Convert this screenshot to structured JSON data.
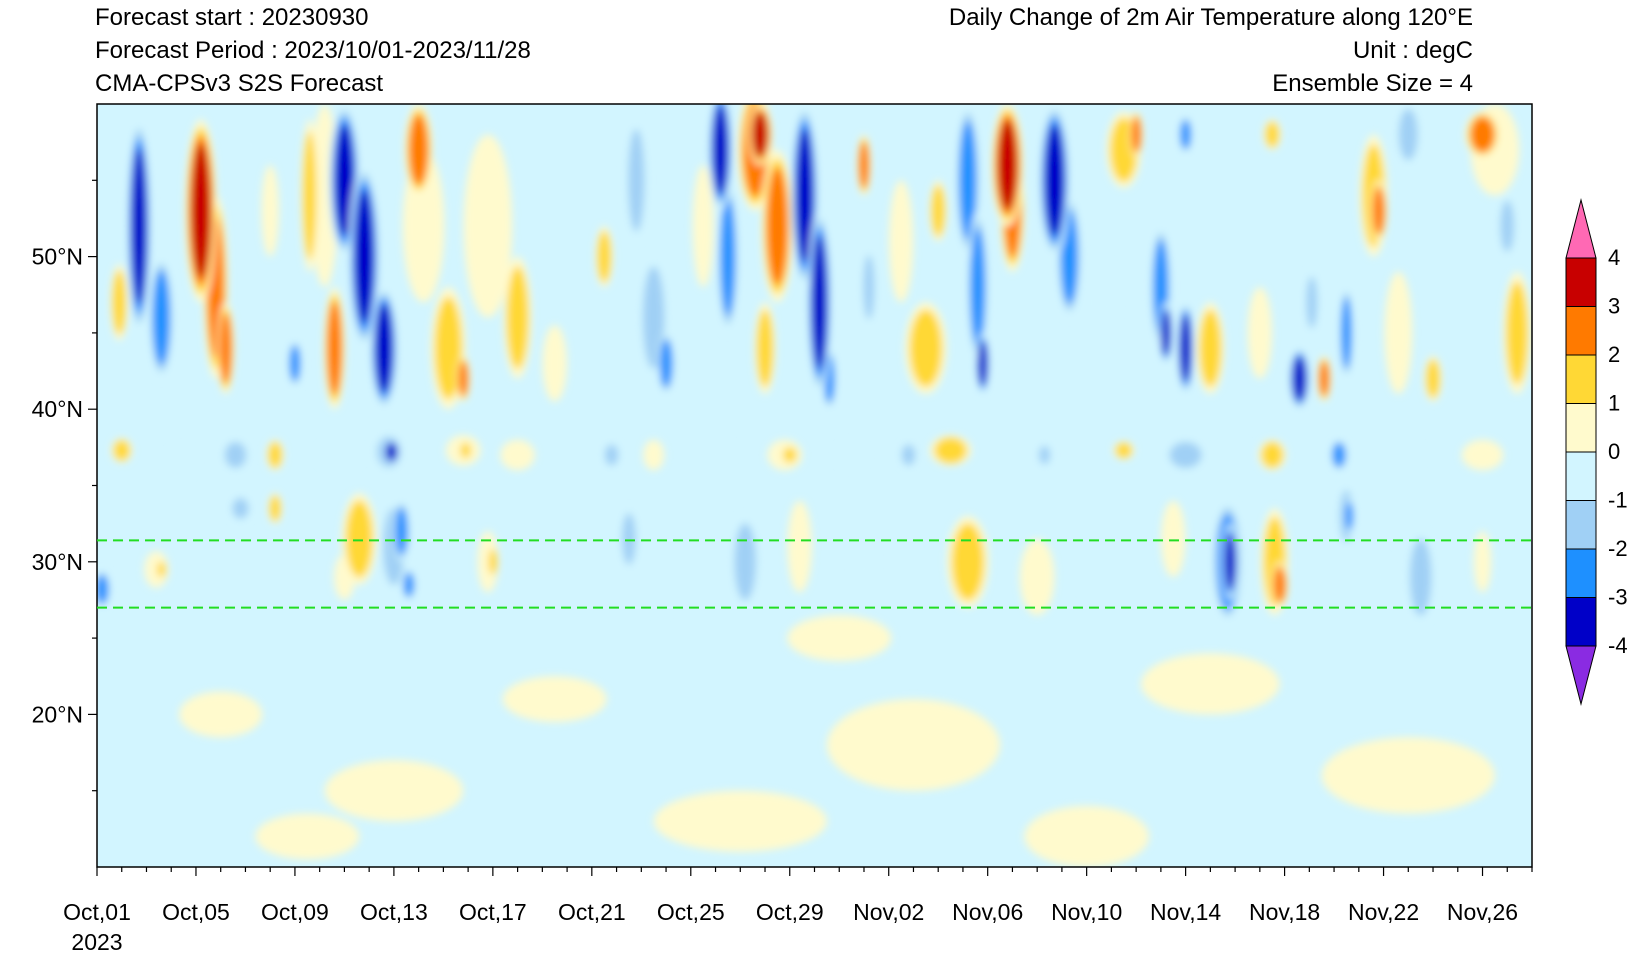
{
  "header": {
    "forecast_start": "Forecast start : 20230930",
    "forecast_period": "Forecast Period : 2023/10/01-2023/11/28",
    "model": "CMA-CPSv3 S2S Forecast",
    "title": "Daily Change of 2m Air Temperature along 120°E",
    "unit": "Unit : degC",
    "ensemble": "Ensemble Size = 4"
  },
  "chart_data": {
    "type": "heatmap",
    "title": "Daily Change of 2m Air Temperature along 120°E",
    "unit": "degC",
    "x_axis": {
      "type": "date",
      "range": [
        "2023-10-01",
        "2023-11-28"
      ],
      "tick_labels": [
        "Oct,01",
        "Oct,05",
        "Oct,09",
        "Oct,13",
        "Oct,17",
        "Oct,21",
        "Oct,25",
        "Oct,29",
        "Nov,02",
        "Nov,06",
        "Nov,10",
        "Nov,14",
        "Nov,18",
        "Nov,22",
        "Nov,26"
      ],
      "tick_dates": [
        "2023-10-01",
        "2023-10-05",
        "2023-10-09",
        "2023-10-13",
        "2023-10-17",
        "2023-10-21",
        "2023-10-25",
        "2023-10-29",
        "2023-11-02",
        "2023-11-06",
        "2023-11-10",
        "2023-11-14",
        "2023-11-18",
        "2023-11-22",
        "2023-11-26"
      ],
      "year_label": "2023"
    },
    "y_axis": {
      "range": [
        10,
        60
      ],
      "tick_values": [
        20,
        30,
        40,
        50
      ],
      "tick_labels": [
        "20°N",
        "30°N",
        "40°N",
        "50°N"
      ]
    },
    "reference_lines": [
      31.4,
      27.0
    ],
    "reference_line_color": "#22dd22",
    "colorbar": {
      "levels": [
        -4,
        -3,
        -2,
        -1,
        0,
        1,
        2,
        3,
        4
      ],
      "labels": [
        "4",
        "3",
        "2",
        "1",
        "0",
        "-1",
        "-2",
        "-3",
        "-4"
      ],
      "colors": [
        "#8a2be2",
        "#0000c8",
        "#1e90ff",
        "#a0d0f5",
        "#d2f5ff",
        "#fffacd",
        "#ffd835",
        "#ff7a00",
        "#c80000",
        "#ff69b4"
      ]
    },
    "blobs": [
      {
        "d": 1.7,
        "lat": 52,
        "w": 0.35,
        "h": 7,
        "v": -4
      },
      {
        "d": 2.6,
        "lat": 46,
        "w": 0.35,
        "h": 4,
        "v": -3
      },
      {
        "d": 4.2,
        "lat": 53,
        "w": 0.45,
        "h": 6,
        "v": 4
      },
      {
        "d": 4.8,
        "lat": 48,
        "w": 0.35,
        "h": 6,
        "v": 3
      },
      {
        "d": 5.2,
        "lat": 44,
        "w": 0.25,
        "h": 3,
        "v": 3
      },
      {
        "d": 0.9,
        "lat": 47,
        "w": 0.25,
        "h": 2.5,
        "v": 2
      },
      {
        "d": 7.0,
        "lat": 53,
        "w": 0.25,
        "h": 3,
        "v": 1
      },
      {
        "d": 8.0,
        "lat": 43,
        "w": 0.2,
        "h": 1.5,
        "v": -3
      },
      {
        "d": 8.6,
        "lat": 54,
        "w": 0.25,
        "h": 5,
        "v": 2
      },
      {
        "d": 9.6,
        "lat": 44,
        "w": 0.3,
        "h": 4,
        "v": 3
      },
      {
        "d": 9.2,
        "lat": 54,
        "w": 0.4,
        "h": 6,
        "v": 1
      },
      {
        "d": 10.0,
        "lat": 55,
        "w": 0.45,
        "h": 5,
        "v": -4
      },
      {
        "d": 10.8,
        "lat": 50,
        "w": 0.45,
        "h": 6,
        "v": -4
      },
      {
        "d": 11.6,
        "lat": 44,
        "w": 0.4,
        "h": 4,
        "v": -4
      },
      {
        "d": 13.0,
        "lat": 57,
        "w": 0.4,
        "h": 3,
        "v": 3
      },
      {
        "d": 13.2,
        "lat": 52,
        "w": 0.6,
        "h": 5,
        "v": 1
      },
      {
        "d": 14.2,
        "lat": 44,
        "w": 0.5,
        "h": 4,
        "v": 2
      },
      {
        "d": 14.8,
        "lat": 42,
        "w": 0.2,
        "h": 1.5,
        "v": 3
      },
      {
        "d": 15.8,
        "lat": 52,
        "w": 0.7,
        "h": 6,
        "v": 1
      },
      {
        "d": 17.0,
        "lat": 46,
        "w": 0.4,
        "h": 4,
        "v": 2
      },
      {
        "d": 18.5,
        "lat": 43,
        "w": 0.35,
        "h": 2.5,
        "v": 1
      },
      {
        "d": 20.5,
        "lat": 50,
        "w": 0.25,
        "h": 2,
        "v": 2
      },
      {
        "d": 21.8,
        "lat": 55,
        "w": 0.3,
        "h": 4,
        "v": -2
      },
      {
        "d": 22.5,
        "lat": 46,
        "w": 0.4,
        "h": 4,
        "v": -2
      },
      {
        "d": 23.0,
        "lat": 43,
        "w": 0.25,
        "h": 2,
        "v": -3
      },
      {
        "d": 24.5,
        "lat": 52,
        "w": 0.3,
        "h": 4,
        "v": 1
      },
      {
        "d": 25.2,
        "lat": 57,
        "w": 0.35,
        "h": 4,
        "v": -4
      },
      {
        "d": 25.5,
        "lat": 50,
        "w": 0.3,
        "h": 5,
        "v": -3
      },
      {
        "d": 26.6,
        "lat": 57,
        "w": 0.5,
        "h": 4,
        "v": 3
      },
      {
        "d": 26.8,
        "lat": 58,
        "w": 0.35,
        "h": 2,
        "v": 4
      },
      {
        "d": 27.5,
        "lat": 52,
        "w": 0.45,
        "h": 5,
        "v": 3
      },
      {
        "d": 27.0,
        "lat": 44,
        "w": 0.3,
        "h": 3,
        "v": 2
      },
      {
        "d": 28.6,
        "lat": 54,
        "w": 0.4,
        "h": 6,
        "v": -4
      },
      {
        "d": 29.2,
        "lat": 47,
        "w": 0.35,
        "h": 6,
        "v": -4
      },
      {
        "d": 29.6,
        "lat": 42,
        "w": 0.2,
        "h": 2,
        "v": -3
      },
      {
        "d": 31.0,
        "lat": 56,
        "w": 0.2,
        "h": 2,
        "v": 3
      },
      {
        "d": 31.2,
        "lat": 48,
        "w": 0.2,
        "h": 2.5,
        "v": -2
      },
      {
        "d": 32.5,
        "lat": 51,
        "w": 0.35,
        "h": 4,
        "v": 1
      },
      {
        "d": 33.5,
        "lat": 44,
        "w": 0.6,
        "h": 3,
        "v": 2
      },
      {
        "d": 34.0,
        "lat": 53,
        "w": 0.25,
        "h": 2,
        "v": 2
      },
      {
        "d": 35.2,
        "lat": 55,
        "w": 0.35,
        "h": 5,
        "v": -3
      },
      {
        "d": 35.6,
        "lat": 48,
        "w": 0.3,
        "h": 5,
        "v": -3
      },
      {
        "d": 35.8,
        "lat": 43,
        "w": 0.2,
        "h": 2,
        "v": -4
      },
      {
        "d": 36.8,
        "lat": 56,
        "w": 0.45,
        "h": 4,
        "v": 4
      },
      {
        "d": 37.0,
        "lat": 53,
        "w": 0.35,
        "h": 4,
        "v": 3
      },
      {
        "d": 38.7,
        "lat": 55,
        "w": 0.45,
        "h": 5,
        "v": -4
      },
      {
        "d": 39.3,
        "lat": 50,
        "w": 0.35,
        "h": 4,
        "v": -3
      },
      {
        "d": 40.5,
        "lat": 47,
        "w": 0.5,
        "h": 3,
        "v": -1
      },
      {
        "d": 41.5,
        "lat": 57,
        "w": 0.5,
        "h": 2.5,
        "v": 2
      },
      {
        "d": 42.0,
        "lat": 58,
        "w": 0.2,
        "h": 1.5,
        "v": 3
      },
      {
        "d": 43.0,
        "lat": 48,
        "w": 0.3,
        "h": 4,
        "v": -3
      },
      {
        "d": 43.2,
        "lat": 45,
        "w": 0.2,
        "h": 2,
        "v": -4
      },
      {
        "d": 44.0,
        "lat": 44,
        "w": 0.25,
        "h": 3,
        "v": -4
      },
      {
        "d": 44.0,
        "lat": 58,
        "w": 0.2,
        "h": 1.2,
        "v": -3
      },
      {
        "d": 45.0,
        "lat": 44,
        "w": 0.4,
        "h": 3,
        "v": 2
      },
      {
        "d": 47.0,
        "lat": 45,
        "w": 0.35,
        "h": 3,
        "v": 1
      },
      {
        "d": 47.5,
        "lat": 58,
        "w": 0.25,
        "h": 1,
        "v": 2
      },
      {
        "d": 48.6,
        "lat": 42,
        "w": 0.3,
        "h": 2,
        "v": -4
      },
      {
        "d": 49.1,
        "lat": 47,
        "w": 0.2,
        "h": 2,
        "v": -2
      },
      {
        "d": 49.6,
        "lat": 42,
        "w": 0.2,
        "h": 1.5,
        "v": 3
      },
      {
        "d": 50.5,
        "lat": 45,
        "w": 0.2,
        "h": 3,
        "v": -3
      },
      {
        "d": 51.6,
        "lat": 54,
        "w": 0.4,
        "h": 4,
        "v": 2
      },
      {
        "d": 51.8,
        "lat": 53,
        "w": 0.25,
        "h": 2,
        "v": 3
      },
      {
        "d": 52.6,
        "lat": 45,
        "w": 0.4,
        "h": 4,
        "v": 1
      },
      {
        "d": 53.0,
        "lat": 58,
        "w": 0.35,
        "h": 2,
        "v": -2
      },
      {
        "d": 54.0,
        "lat": 42,
        "w": 0.25,
        "h": 1.5,
        "v": 2
      },
      {
        "d": 56.0,
        "lat": 58,
        "w": 0.5,
        "h": 1.5,
        "v": 3
      },
      {
        "d": 56.5,
        "lat": 57,
        "w": 0.7,
        "h": 3,
        "v": 1
      },
      {
        "d": 57.0,
        "lat": 52,
        "w": 0.25,
        "h": 2,
        "v": -2
      },
      {
        "d": 57.4,
        "lat": 45,
        "w": 0.4,
        "h": 4,
        "v": 2
      },
      {
        "d": 1.0,
        "lat": 37.3,
        "w": 0.3,
        "h": 0.8,
        "v": 2
      },
      {
        "d": 3.4,
        "lat": 36.5,
        "w": 0.4,
        "h": 1,
        "v": -1
      },
      {
        "d": 5.6,
        "lat": 37,
        "w": 0.4,
        "h": 1,
        "v": -2
      },
      {
        "d": 7.2,
        "lat": 37,
        "w": 0.25,
        "h": 1,
        "v": 2
      },
      {
        "d": 9.8,
        "lat": 37,
        "w": 0.6,
        "h": 1,
        "v": -1
      },
      {
        "d": 11.8,
        "lat": 37.2,
        "w": 0.45,
        "h": 1.2,
        "v": -2
      },
      {
        "d": 11.9,
        "lat": 37.2,
        "w": 0.25,
        "h": 0.8,
        "v": -4
      },
      {
        "d": 14.8,
        "lat": 37.3,
        "w": 0.5,
        "h": 1,
        "v": 1
      },
      {
        "d": 14.9,
        "lat": 37.3,
        "w": 0.2,
        "h": 0.6,
        "v": 2
      },
      {
        "d": 17.0,
        "lat": 37,
        "w": 0.5,
        "h": 1,
        "v": 1
      },
      {
        "d": 20.8,
        "lat": 37,
        "w": 0.25,
        "h": 0.8,
        "v": -2
      },
      {
        "d": 22.5,
        "lat": 37,
        "w": 0.3,
        "h": 1,
        "v": 1
      },
      {
        "d": 25.0,
        "lat": 37.2,
        "w": 0.5,
        "h": 0.8,
        "v": -1
      },
      {
        "d": 27.8,
        "lat": 37,
        "w": 0.5,
        "h": 1,
        "v": 1
      },
      {
        "d": 28.0,
        "lat": 37,
        "w": 0.25,
        "h": 0.6,
        "v": 2
      },
      {
        "d": 30.5,
        "lat": 37,
        "w": 0.4,
        "h": 0.8,
        "v": -1
      },
      {
        "d": 32.8,
        "lat": 37,
        "w": 0.25,
        "h": 0.8,
        "v": -2
      },
      {
        "d": 34.5,
        "lat": 37.3,
        "w": 0.6,
        "h": 1,
        "v": 2
      },
      {
        "d": 37.0,
        "lat": 37,
        "w": 0.5,
        "h": 1,
        "v": -1
      },
      {
        "d": 38.3,
        "lat": 37,
        "w": 0.2,
        "h": 0.7,
        "v": -2
      },
      {
        "d": 41.5,
        "lat": 37.3,
        "w": 0.3,
        "h": 0.6,
        "v": 2
      },
      {
        "d": 44.0,
        "lat": 37,
        "w": 0.6,
        "h": 1,
        "v": -2
      },
      {
        "d": 46.0,
        "lat": 37,
        "w": 0.4,
        "h": 1,
        "v": -1
      },
      {
        "d": 47.5,
        "lat": 37,
        "w": 0.4,
        "h": 1,
        "v": 2
      },
      {
        "d": 50.2,
        "lat": 37,
        "w": 0.25,
        "h": 1,
        "v": -3
      },
      {
        "d": 53.0,
        "lat": 37,
        "w": 0.4,
        "h": 0.8,
        "v": -1
      },
      {
        "d": 56.0,
        "lat": 37,
        "w": 0.6,
        "h": 1,
        "v": 1
      },
      {
        "d": 0.2,
        "lat": 28.2,
        "w": 0.25,
        "h": 1.2,
        "v": -3
      },
      {
        "d": 2.4,
        "lat": 29.5,
        "w": 0.35,
        "h": 1.2,
        "v": 1
      },
      {
        "d": 2.6,
        "lat": 29.5,
        "w": 0.15,
        "h": 0.6,
        "v": 2
      },
      {
        "d": 5.8,
        "lat": 33.5,
        "w": 0.3,
        "h": 0.8,
        "v": -2
      },
      {
        "d": 7.2,
        "lat": 33.5,
        "w": 0.2,
        "h": 1,
        "v": 2
      },
      {
        "d": 10.0,
        "lat": 29,
        "w": 0.3,
        "h": 1.5,
        "v": 1
      },
      {
        "d": 10.6,
        "lat": 31.5,
        "w": 0.5,
        "h": 3,
        "v": 2
      },
      {
        "d": 12.0,
        "lat": 31,
        "w": 0.4,
        "h": 3,
        "v": -2
      },
      {
        "d": 12.3,
        "lat": 32,
        "w": 0.25,
        "h": 2,
        "v": -3
      },
      {
        "d": 12.6,
        "lat": 28.5,
        "w": 0.2,
        "h": 1,
        "v": -3
      },
      {
        "d": 15.8,
        "lat": 30,
        "w": 0.3,
        "h": 2,
        "v": 1
      },
      {
        "d": 16.0,
        "lat": 30,
        "w": 0.15,
        "h": 1,
        "v": 2
      },
      {
        "d": 21.5,
        "lat": 31.5,
        "w": 0.25,
        "h": 2,
        "v": -2
      },
      {
        "d": 22.8,
        "lat": 29,
        "w": 0.35,
        "h": 2.5,
        "v": -1
      },
      {
        "d": 26.2,
        "lat": 30,
        "w": 0.4,
        "h": 3,
        "v": -2
      },
      {
        "d": 28.4,
        "lat": 31,
        "w": 0.35,
        "h": 3,
        "v": 1
      },
      {
        "d": 31.0,
        "lat": 30,
        "w": 0.3,
        "h": 3,
        "v": -1
      },
      {
        "d": 35.2,
        "lat": 30,
        "w": 0.6,
        "h": 3,
        "v": 2
      },
      {
        "d": 38.0,
        "lat": 29,
        "w": 0.5,
        "h": 2.5,
        "v": 1
      },
      {
        "d": 40.0,
        "lat": 30,
        "w": 0.3,
        "h": 2,
        "v": -1
      },
      {
        "d": 43.5,
        "lat": 31.5,
        "w": 0.35,
        "h": 2.5,
        "v": 1
      },
      {
        "d": 45.7,
        "lat": 30,
        "w": 0.45,
        "h": 4,
        "v": -3
      },
      {
        "d": 45.8,
        "lat": 30,
        "w": 0.25,
        "h": 2.5,
        "v": -4
      },
      {
        "d": 47.6,
        "lat": 30,
        "w": 0.4,
        "h": 3.5,
        "v": 2
      },
      {
        "d": 47.8,
        "lat": 28.5,
        "w": 0.25,
        "h": 1.5,
        "v": 3
      },
      {
        "d": 50.5,
        "lat": 33,
        "w": 0.25,
        "h": 2,
        "v": -2
      },
      {
        "d": 50.6,
        "lat": 33,
        "w": 0.12,
        "h": 1.2,
        "v": -3
      },
      {
        "d": 53.5,
        "lat": 29,
        "w": 0.4,
        "h": 3,
        "v": -2
      },
      {
        "d": 51.7,
        "lat": 29,
        "w": 0.4,
        "h": 1.5,
        "v": -1
      },
      {
        "d": 56.0,
        "lat": 30,
        "w": 0.25,
        "h": 2,
        "v": 1
      },
      {
        "d": 5.0,
        "lat": 20,
        "w": 1.2,
        "h": 1.5,
        "v": 1
      },
      {
        "d": 12.0,
        "lat": 15,
        "w": 2.0,
        "h": 2,
        "v": 1
      },
      {
        "d": 18.5,
        "lat": 21,
        "w": 1.5,
        "h": 1.5,
        "v": 1
      },
      {
        "d": 26.0,
        "lat": 13,
        "w": 2.5,
        "h": 2,
        "v": 1
      },
      {
        "d": 33.0,
        "lat": 18,
        "w": 2.5,
        "h": 3,
        "v": 1
      },
      {
        "d": 40.0,
        "lat": 12,
        "w": 1.8,
        "h": 2,
        "v": 1
      },
      {
        "d": 45.0,
        "lat": 22,
        "w": 2.0,
        "h": 2,
        "v": 1
      },
      {
        "d": 53.0,
        "lat": 16,
        "w": 2.5,
        "h": 2.5,
        "v": 1
      },
      {
        "d": 8.5,
        "lat": 12,
        "w": 1.5,
        "h": 1.5,
        "v": 1
      },
      {
        "d": 30.0,
        "lat": 25,
        "w": 1.5,
        "h": 1.5,
        "v": 1
      }
    ]
  }
}
